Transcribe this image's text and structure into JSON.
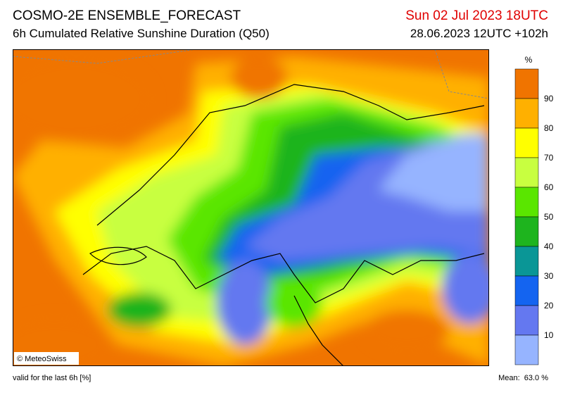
{
  "header": {
    "title": "COSMO-2E ENSEMBLE_FORECAST",
    "subtitle": "6h Cumulated Relative Sunshine Duration (Q50)",
    "valid_time": "Sun 02 Jul 2023 18UTC",
    "run_info": "28.06.2023 12UTC +102h"
  },
  "map": {
    "credit": "© MeteoSwiss"
  },
  "legend": {
    "unit": "%",
    "ticks": [
      90,
      80,
      70,
      60,
      50,
      40,
      30,
      20,
      10
    ],
    "colors": [
      "#f07400",
      "#ffb000",
      "#ffff00",
      "#c8ff40",
      "#5ae600",
      "#1eb41e",
      "#0a9696",
      "#1464f0",
      "#6478f0",
      "#96b4ff"
    ]
  },
  "footer": {
    "note": "valid for the last 6h [%]",
    "mean": "Mean:  63.0 %"
  }
}
